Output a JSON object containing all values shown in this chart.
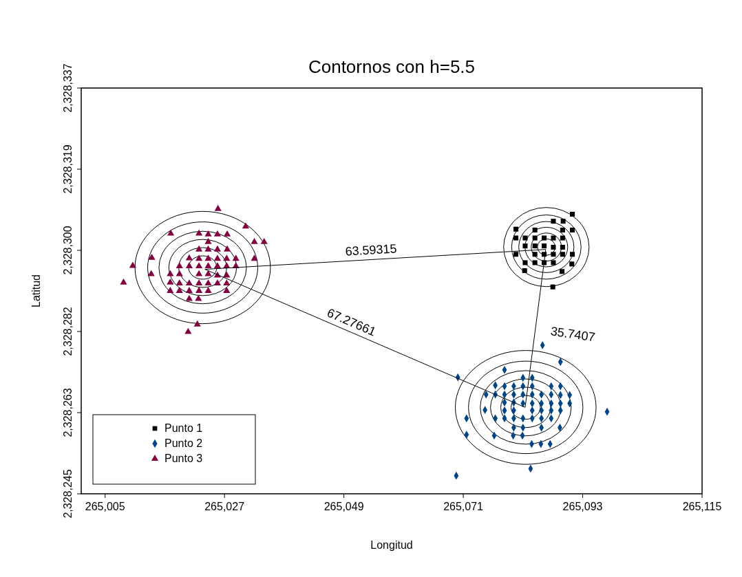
{
  "chart_data": {
    "type": "scatter",
    "title": "Contornos con h=5.5",
    "xlabel": "Longitud",
    "ylabel": "Latitud",
    "xlim": [
      265000.6,
      265115
    ],
    "ylim": [
      2328245,
      2328337
    ],
    "xticks": [
      {
        "value": 265005,
        "label": "265,005"
      },
      {
        "value": 265027,
        "label": "265,027"
      },
      {
        "value": 265049,
        "label": "265,049"
      },
      {
        "value": 265071,
        "label": "265,071"
      },
      {
        "value": 265093,
        "label": "265,093"
      },
      {
        "value": 265115,
        "label": "265,115"
      }
    ],
    "yticks": [
      {
        "value": 2328245,
        "label": "2,328,245"
      },
      {
        "value": 2328263.4,
        "label": "2,328,263"
      },
      {
        "value": 2328281.8,
        "label": "2,328,282"
      },
      {
        "value": 2328300.2,
        "label": "2,328,300"
      },
      {
        "value": 2328318.6,
        "label": "2,328,319"
      },
      {
        "value": 2328337,
        "label": "2,328,337"
      }
    ],
    "grid": false,
    "legend": "bottom left",
    "series": [
      {
        "name": "Punto 1",
        "color": "#000000",
        "marker": "square",
        "x": [
          265091.1,
          265087.6,
          265089.4,
          265080.7,
          265084.2,
          265089.3,
          265091.1,
          265080.7,
          265082.4,
          265084.2,
          265085.9,
          265087.6,
          265089.3,
          265082.4,
          265084.2,
          265085.9,
          265087.6,
          265089.3,
          265080.7,
          265084.2,
          265085.9,
          265087.6,
          265089.3,
          265091.1,
          265082.4,
          265084.2,
          265085.9,
          265087.6,
          265091.0,
          265082.3,
          265089.2,
          265087.5
        ],
        "values": [
          2328308.4,
          2328306.8,
          2328306.8,
          2328305.0,
          2328304.8,
          2328304.8,
          2328304.8,
          2328303.0,
          2328303.0,
          2328303.0,
          2328303.0,
          2328303.0,
          2328303.0,
          2328301.2,
          2328301.2,
          2328301.2,
          2328300.9,
          2328300.9,
          2328299.3,
          2328299.3,
          2328299.3,
          2328299.3,
          2328299.3,
          2328299.3,
          2328297.4,
          2328297.4,
          2328297.4,
          2328297.4,
          2328297.1,
          2328295.6,
          2328295.4,
          2328291.9
        ]
      },
      {
        "name": "Punto 2",
        "color": "#004586",
        "marker": "diamond",
        "x": [
          265085.6,
          265088.9,
          265078.6,
          265070.0,
          265082.0,
          265083.7,
          265076.9,
          265078.6,
          265080.3,
          265082.0,
          265083.7,
          265087.2,
          265088.9,
          265075.2,
          265076.9,
          265078.6,
          265080.3,
          265082.0,
          265083.7,
          265085.4,
          265087.2,
          265088.9,
          265090.6,
          265078.6,
          265080.3,
          265082.0,
          265083.7,
          265085.4,
          265087.2,
          265088.9,
          265090.6,
          265075.0,
          265078.6,
          265080.3,
          265083.7,
          265085.4,
          265087.2,
          265088.9,
          265097.5,
          265071.6,
          265076.9,
          265078.6,
          265080.3,
          265082.0,
          265083.7,
          265085.4,
          265087.2,
          265080.3,
          265082.0,
          265085.4,
          265088.8,
          265071.6,
          265076.7,
          265080.2,
          265081.9,
          265083.6,
          265085.3,
          265087.0,
          265083.4,
          265069.7
        ],
        "values": [
          2328278.7,
          2328274.9,
          2328273.1,
          2328271.4,
          2328271.3,
          2328271.3,
          2328269.6,
          2328269.4,
          2328269.4,
          2328269.4,
          2328269.4,
          2328269.4,
          2328269.4,
          2328267.5,
          2328267.5,
          2328267.5,
          2328267.5,
          2328267.5,
          2328267.5,
          2328267.5,
          2328267.5,
          2328267.4,
          2328267.4,
          2328265.7,
          2328265.7,
          2328265.5,
          2328265.5,
          2328265.5,
          2328265.5,
          2328265.5,
          2328265.5,
          2328264.0,
          2328263.9,
          2328263.9,
          2328263.9,
          2328263.9,
          2328263.9,
          2328263.9,
          2328263.6,
          2328262.1,
          2328262.1,
          2328262.1,
          2328262.1,
          2328262.1,
          2328262.1,
          2328262.1,
          2328262.1,
          2328260.0,
          2328260.0,
          2328260.0,
          2328260.0,
          2328258.4,
          2328258.2,
          2328258.2,
          2328258.2,
          2328256.3,
          2328256.3,
          2328256.3,
          2328250.7,
          2328249.1
        ]
      },
      {
        "name": "Punto 3",
        "color": "#800040",
        "marker": "triangle",
        "x": [
          265025.8,
          265030.9,
          265017.1,
          265022.3,
          265024.0,
          265025.7,
          265027.5,
          265032.5,
          265034.3,
          265024.0,
          265022.3,
          265024.0,
          265025.7,
          265027.5,
          265013.6,
          265020.5,
          265022.3,
          265024.0,
          265025.7,
          265027.4,
          265029.1,
          265032.5,
          265010.1,
          265018.7,
          265020.5,
          265022.3,
          265024.0,
          265025.7,
          265027.4,
          265029.1,
          265008.4,
          265013.5,
          265017.0,
          265018.7,
          265022.3,
          265024.0,
          265025.7,
          265027.4,
          265017.0,
          265018.7,
          265020.5,
          265022.3,
          265024.0,
          265025.7,
          265027.4,
          265017.0,
          265018.7,
          265020.5,
          265022.3,
          265024.0,
          265027.4,
          265020.5,
          265022.2,
          265022.0,
          265020.3
        ],
        "values": [
          2328309.6,
          2328305.6,
          2328304.0,
          2328304.0,
          2328303.8,
          2328303.8,
          2328303.8,
          2328302.1,
          2328302.1,
          2328302.1,
          2328300.4,
          2328300.4,
          2328300.4,
          2328300.4,
          2328298.5,
          2328298.4,
          2328298.3,
          2328298.3,
          2328298.3,
          2328298.3,
          2328298.3,
          2328298.3,
          2328296.7,
          2328296.6,
          2328296.6,
          2328296.6,
          2328296.6,
          2328296.6,
          2328296.6,
          2328296.6,
          2328292.9,
          2328294.8,
          2328294.8,
          2328294.8,
          2328294.8,
          2328294.8,
          2328294.5,
          2328294.5,
          2328292.9,
          2328292.7,
          2328292.7,
          2328292.7,
          2328292.7,
          2328292.7,
          2328292.7,
          2328291.0,
          2328291.0,
          2328291.0,
          2328291.0,
          2328291.0,
          2328291.0,
          2328289.2,
          2328289.2,
          2328283.4,
          2328281.7
        ]
      },
      {
        "type": "line",
        "color": "#000000",
        "x": [
          265023.4,
          265086.2
        ],
        "values": [
          2328295.9,
          2328300.4
        ]
      },
      {
        "type": "line",
        "color": "#000000",
        "x": [
          265023.4,
          265082.4
        ],
        "values": [
          2328295.9,
          2328264.6
        ]
      },
      {
        "type": "line",
        "color": "#000000",
        "x": [
          265086.2,
          265082.4
        ],
        "values": [
          2328300.4,
          2328264.6
        ]
      }
    ],
    "annotations": [
      {
        "text": "63.59315",
        "x": 265054.1,
        "y": 2328298.1
      },
      {
        "text": "35.7407",
        "x": 265084.2,
        "y": 2328281.9
      },
      {
        "text": "67.27661",
        "x": 265049.7,
        "y": 2328281.9
      }
    ]
  }
}
